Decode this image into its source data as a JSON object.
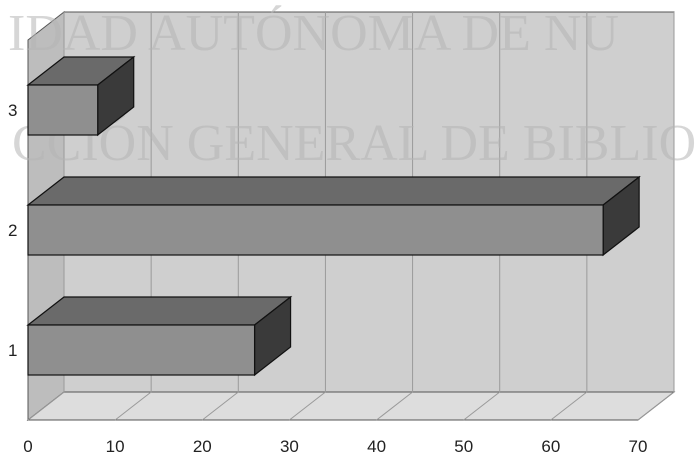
{
  "chart_data": {
    "type": "bar",
    "orientation": "horizontal",
    "style": "3d",
    "categories": [
      "1",
      "2",
      "3"
    ],
    "values": [
      26,
      66,
      8
    ],
    "xlim": [
      0,
      70
    ],
    "xticks": [
      0,
      10,
      20,
      30,
      40,
      50,
      60,
      70
    ],
    "grid": true,
    "legend": "none",
    "title": "",
    "xlabel": "",
    "ylabel": ""
  },
  "watermark": {
    "line1": "IDAD AUTÓNOMA DE NU",
    "line2": "CCIÓN GENERAL DE BIBLIO"
  },
  "colors": {
    "plot_back": "#cfcfcf",
    "floor": "#dddddd",
    "side_wall": "#bdbdbd",
    "bar_front": "#8f8f8f",
    "bar_top": "#6a6a6a",
    "bar_side": "#3a3a3a",
    "grid": "#9a9a9a"
  }
}
